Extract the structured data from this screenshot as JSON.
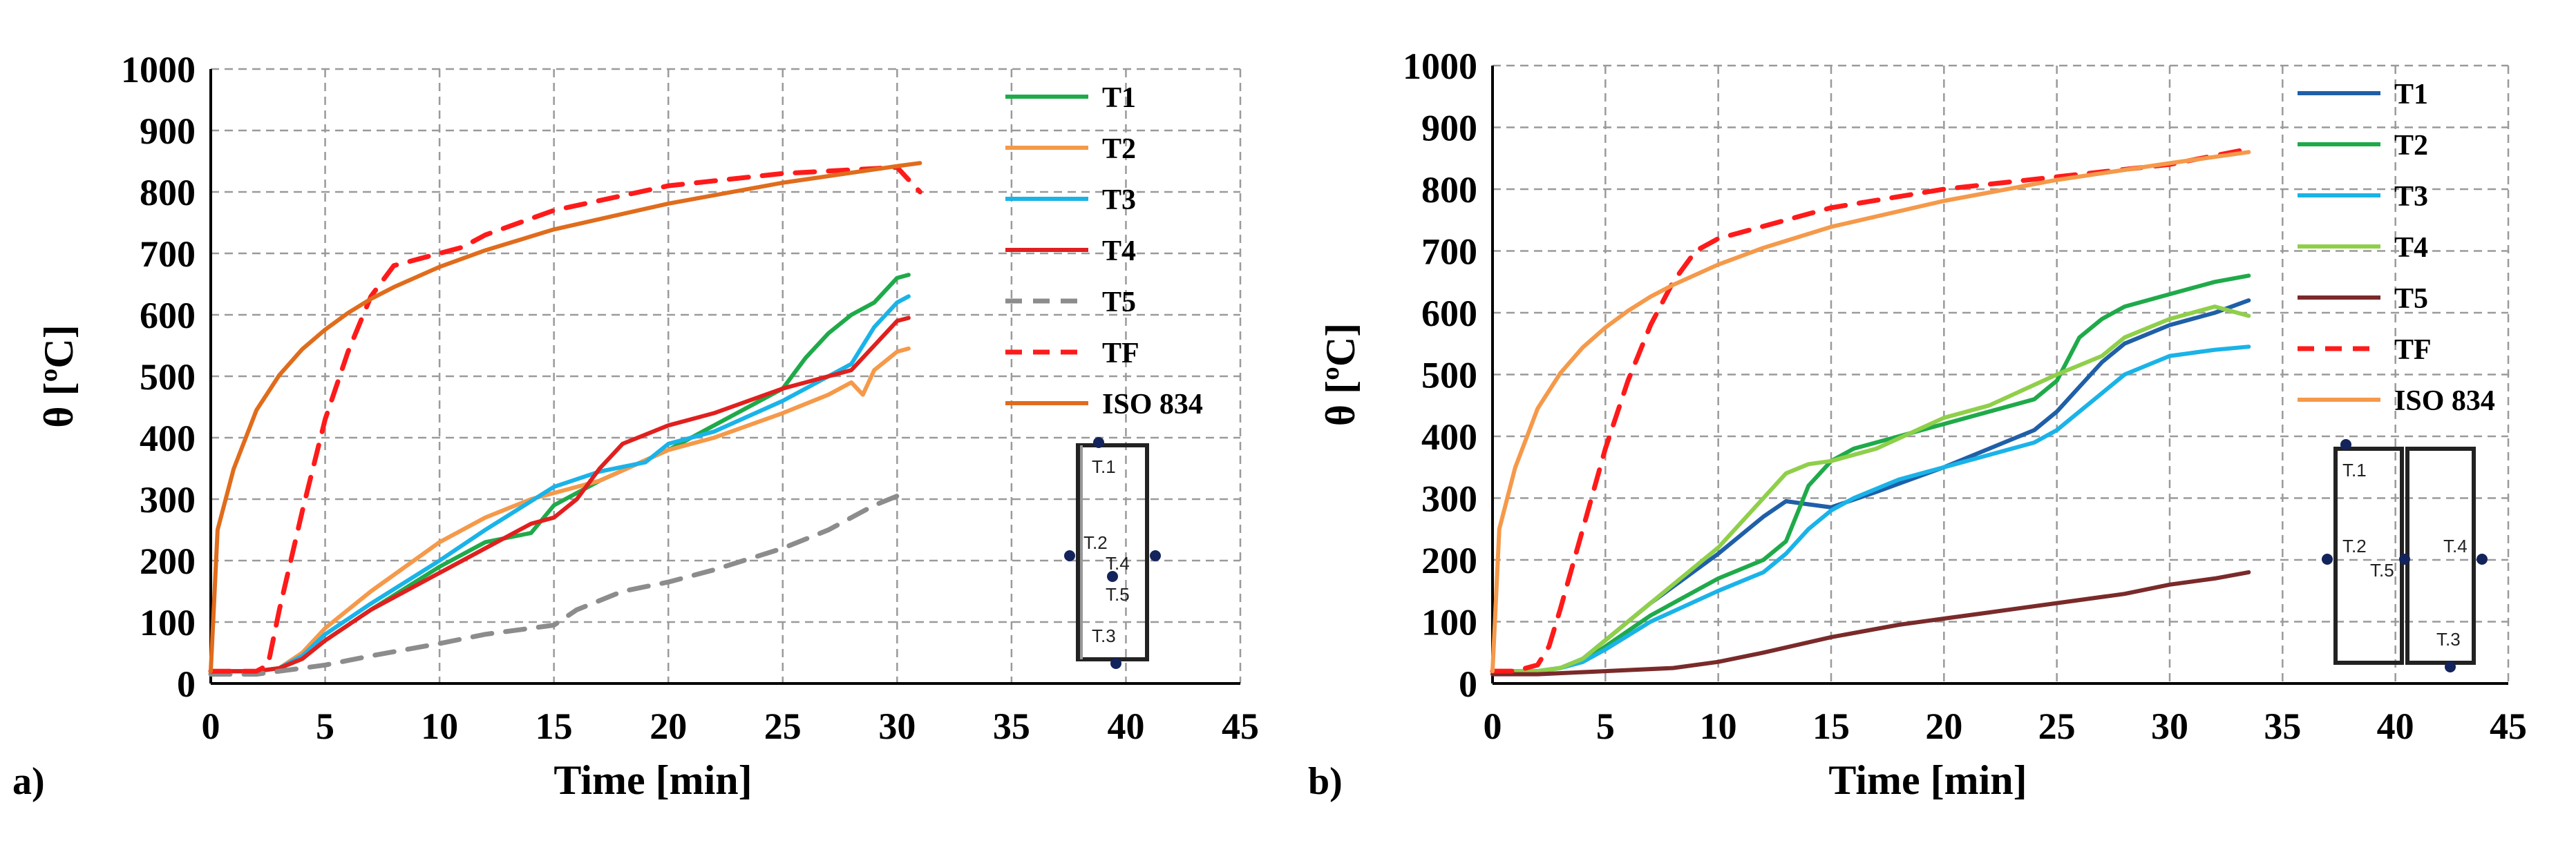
{
  "chart_data": [
    {
      "type": "line",
      "panel_label": "a)",
      "xlabel": "Time [min]",
      "ylabel": "θ [ºC]",
      "xlim": [
        0,
        45
      ],
      "ylim": [
        0,
        1000
      ],
      "xticks": [
        "0",
        "5",
        "10",
        "15",
        "20",
        "25",
        "30",
        "35",
        "40",
        "45"
      ],
      "yticks": [
        "0",
        "100",
        "200",
        "300",
        "400",
        "500",
        "600",
        "700",
        "800",
        "900",
        "1000"
      ],
      "grid": true,
      "legend_position": "right",
      "sensor_labels": [
        "T.1",
        "T.2",
        "T.3",
        "T.4",
        "T.5"
      ],
      "series": [
        {
          "name": "T1",
          "color": "#1faa4a",
          "dash": false,
          "x": [
            0,
            2,
            3,
            4,
            5,
            7,
            10,
            12,
            14,
            15,
            17,
            20,
            22,
            25,
            26,
            27,
            28,
            29,
            30,
            30.5
          ],
          "y": [
            20,
            20,
            25,
            40,
            70,
            120,
            190,
            230,
            245,
            290,
            330,
            380,
            420,
            480,
            530,
            570,
            600,
            620,
            660,
            665
          ]
        },
        {
          "name": "T2",
          "color": "#f5994a",
          "dash": false,
          "x": [
            0,
            2,
            3,
            4,
            5,
            7,
            10,
            12,
            14,
            15,
            17,
            20,
            22,
            25,
            27,
            28,
            28.5,
            29,
            30,
            30.5
          ],
          "y": [
            20,
            20,
            25,
            50,
            90,
            150,
            230,
            270,
            300,
            310,
            330,
            380,
            400,
            440,
            470,
            490,
            470,
            510,
            540,
            545
          ]
        },
        {
          "name": "T3",
          "color": "#1ab3e8",
          "dash": false,
          "x": [
            0,
            2,
            3,
            4,
            5,
            7,
            10,
            12,
            15,
            17,
            19,
            20,
            22,
            25,
            27,
            28,
            29,
            30,
            30.5
          ],
          "y": [
            20,
            20,
            25,
            45,
            80,
            130,
            200,
            250,
            320,
            345,
            360,
            390,
            410,
            460,
            500,
            520,
            580,
            620,
            630
          ]
        },
        {
          "name": "T4",
          "color": "#e0201e",
          "dash": false,
          "x": [
            0,
            2,
            3,
            4,
            5,
            7,
            10,
            12,
            14,
            15,
            16,
            17,
            18,
            20,
            22,
            25,
            27,
            28,
            29,
            30,
            30.5
          ],
          "y": [
            20,
            20,
            25,
            40,
            70,
            120,
            180,
            220,
            260,
            270,
            300,
            350,
            390,
            420,
            440,
            480,
            500,
            510,
            550,
            590,
            595
          ]
        },
        {
          "name": "T5",
          "color": "#8c8c8c",
          "dash": true,
          "x": [
            0,
            2,
            3,
            4,
            5,
            7,
            10,
            12,
            15,
            16,
            18,
            20,
            22,
            25,
            27,
            28,
            29,
            30,
            30.5
          ],
          "y": [
            15,
            15,
            20,
            25,
            30,
            45,
            65,
            80,
            95,
            120,
            150,
            165,
            185,
            220,
            250,
            270,
            290,
            305,
            315
          ]
        },
        {
          "name": "TF",
          "color": "#ff1a1a",
          "dash": true,
          "x": [
            0,
            2,
            2.5,
            3,
            4,
            5,
            6,
            7,
            8,
            9,
            10,
            11,
            12,
            15,
            20,
            25,
            30,
            31
          ],
          "y": [
            20,
            20,
            30,
            120,
            280,
            430,
            540,
            630,
            680,
            690,
            700,
            710,
            730,
            770,
            810,
            830,
            840,
            800
          ]
        },
        {
          "name": "ISO 834",
          "color": "#e06c1c",
          "dash": false,
          "x": [
            0,
            0.3,
            1,
            2,
            3,
            4,
            5,
            6,
            7,
            8,
            10,
            12,
            15,
            20,
            25,
            30,
            31
          ],
          "y": [
            20,
            250,
            349,
            445,
            502,
            544,
            576,
            603,
            626,
            645,
            678,
            705,
            739,
            781,
            815,
            842,
            847
          ]
        }
      ]
    },
    {
      "type": "line",
      "panel_label": "b)",
      "xlabel": "Time [min]",
      "ylabel": "θ [ºC]",
      "xlim": [
        0,
        45
      ],
      "ylim": [
        0,
        1000
      ],
      "xticks": [
        "0",
        "5",
        "10",
        "15",
        "20",
        "25",
        "30",
        "35",
        "40",
        "45"
      ],
      "yticks": [
        "0",
        "100",
        "200",
        "300",
        "400",
        "500",
        "600",
        "700",
        "800",
        "900",
        "1000"
      ],
      "grid": true,
      "legend_position": "right",
      "sensor_labels": [
        "T.1",
        "T.2",
        "T.5",
        "T.4",
        "T.3"
      ],
      "series": [
        {
          "name": "T1",
          "color": "#1f5fa8",
          "dash": false,
          "x": [
            0,
            2,
            3,
            4,
            5,
            7,
            10,
            12,
            13,
            14,
            15,
            17,
            20,
            22,
            24,
            25,
            26,
            27,
            28,
            30,
            32,
            33.5
          ],
          "y": [
            20,
            20,
            25,
            40,
            70,
            130,
            210,
            270,
            295,
            290,
            285,
            310,
            350,
            380,
            410,
            440,
            480,
            520,
            550,
            580,
            600,
            620
          ]
        },
        {
          "name": "T2",
          "color": "#1faa4a",
          "dash": false,
          "x": [
            0,
            2,
            3,
            4,
            5,
            7,
            10,
            12,
            13,
            14,
            15,
            16,
            18,
            20,
            22,
            24,
            25,
            26,
            27,
            28,
            30,
            32,
            33.5
          ],
          "y": [
            20,
            20,
            25,
            35,
            60,
            110,
            170,
            200,
            230,
            320,
            360,
            380,
            400,
            420,
            440,
            460,
            490,
            560,
            590,
            610,
            630,
            650,
            660
          ]
        },
        {
          "name": "T3",
          "color": "#1ab3e8",
          "dash": false,
          "x": [
            0,
            2,
            3,
            4,
            5,
            7,
            10,
            12,
            13,
            14,
            15,
            16,
            18,
            20,
            22,
            24,
            25,
            26,
            27,
            28,
            30,
            32,
            33.5
          ],
          "y": [
            20,
            20,
            25,
            35,
            55,
            100,
            150,
            180,
            210,
            250,
            280,
            300,
            330,
            350,
            370,
            390,
            410,
            440,
            470,
            500,
            530,
            540,
            545
          ]
        },
        {
          "name": "T4",
          "color": "#8fcf4a",
          "dash": false,
          "x": [
            0,
            2,
            3,
            4,
            5,
            7,
            10,
            12,
            13,
            14,
            15,
            17,
            20,
            22,
            25,
            27,
            28,
            30,
            32,
            33.5
          ],
          "y": [
            20,
            20,
            25,
            40,
            70,
            130,
            220,
            300,
            340,
            355,
            360,
            380,
            430,
            450,
            500,
            530,
            560,
            590,
            610,
            595
          ]
        },
        {
          "name": "T5",
          "color": "#7a2a2a",
          "dash": false,
          "x": [
            0,
            2,
            5,
            8,
            10,
            12,
            15,
            18,
            20,
            22,
            25,
            28,
            30,
            32,
            33.5
          ],
          "y": [
            15,
            15,
            20,
            25,
            35,
            50,
            75,
            95,
            105,
            115,
            130,
            145,
            160,
            170,
            180
          ]
        },
        {
          "name": "TF",
          "color": "#ff1a1a",
          "dash": true,
          "x": [
            0,
            1,
            2,
            2.5,
            3,
            4,
            5,
            6,
            7,
            8,
            9,
            10,
            12,
            15,
            20,
            25,
            30,
            33.5
          ],
          "y": [
            20,
            20,
            30,
            60,
            120,
            250,
            380,
            490,
            580,
            650,
            700,
            720,
            740,
            770,
            800,
            820,
            840,
            865
          ]
        },
        {
          "name": "ISO 834",
          "color": "#f5994a",
          "dash": false,
          "x": [
            0,
            0.3,
            1,
            2,
            3,
            4,
            5,
            6,
            7,
            8,
            10,
            12,
            15,
            20,
            25,
            30,
            33.5
          ],
          "y": [
            20,
            250,
            349,
            445,
            502,
            544,
            576,
            603,
            626,
            645,
            678,
            705,
            739,
            781,
            815,
            842,
            860
          ]
        }
      ]
    }
  ]
}
